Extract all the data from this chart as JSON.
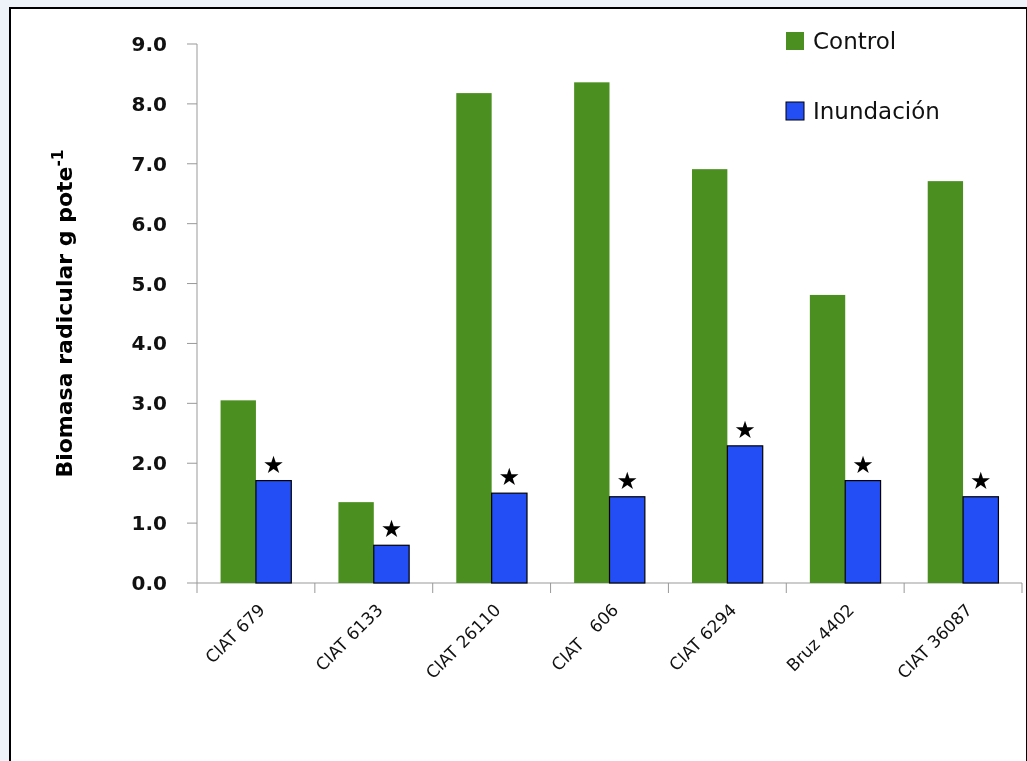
{
  "chart_data": {
    "type": "bar",
    "ylabel": "Biomasa radicular g pote$^{-1}$",
    "categories": [
      "CIAT 679",
      "CIAT 6133",
      "CIAT 26110",
      "CIAT   606",
      "CIAT 6294",
      "Bruz 4402",
      "CIAT 36087"
    ],
    "series": [
      {
        "name": "Control",
        "color": "#4a8f1f",
        "values": [
          3.05,
          1.35,
          8.18,
          8.36,
          6.91,
          4.81,
          6.71
        ]
      },
      {
        "name": "Inundación",
        "color": "#234ef5",
        "values": [
          1.71,
          0.63,
          1.5,
          1.44,
          2.29,
          1.71,
          1.44
        ]
      }
    ],
    "ylim": [
      0,
      9
    ],
    "yticks": [
      {
        "value": 0,
        "label": "0.0"
      },
      {
        "value": 1,
        "label": "1.0"
      },
      {
        "value": 2,
        "label": "2.0"
      },
      {
        "value": 3,
        "label": "3.0"
      },
      {
        "value": 4,
        "label": "4.0"
      },
      {
        "value": 5,
        "label": "5.0"
      },
      {
        "value": 6,
        "label": "6.0"
      },
      {
        "value": 7,
        "label": "7.0"
      },
      {
        "value": 8,
        "label": "8.0"
      },
      {
        "value": 9,
        "label": "9.0"
      }
    ],
    "grid": false,
    "legend": "top right",
    "annotations": [
      {
        "text": "★",
        "x": "CIAT 679",
        "y": 1.71
      },
      {
        "text": "★",
        "x": "CIAT 6133",
        "y": 0.63
      },
      {
        "text": "★",
        "x": "CIAT 26110",
        "y": 1.5
      },
      {
        "text": "★",
        "x": "CIAT   606",
        "y": 1.44
      },
      {
        "text": "★",
        "x": "CIAT 6294",
        "y": 2.29
      },
      {
        "text": "★",
        "x": "Bruz 4402",
        "y": 1.71
      },
      {
        "text": "★",
        "x": "CIAT 36087",
        "y": 1.44
      }
    ]
  }
}
